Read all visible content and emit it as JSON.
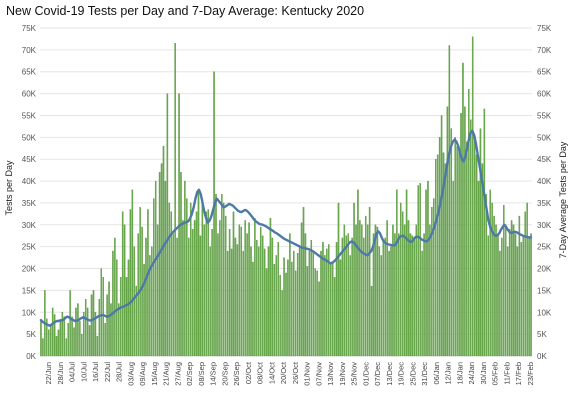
{
  "chart_data": {
    "type": "bar",
    "title": "New Covid-19 Tests per Day and 7-Day Average:  Kentucky 2020",
    "ylabel": "Tests per Day",
    "y2label": "7-Day Average Tests per Day",
    "ylim": [
      0,
      75000
    ],
    "y_ticks": [
      "0K",
      "5K",
      "10K",
      "15K",
      "20K",
      "25K",
      "30K",
      "35K",
      "40K",
      "45K",
      "50K",
      "55K",
      "60K",
      "65K",
      "70K",
      "75K"
    ],
    "x_tick_labels": [
      "22/Jun",
      "28/Jun",
      "04/Jul",
      "10/Jul",
      "16/Jul",
      "22/Jul",
      "28/Jul",
      "03/Aug",
      "09/Aug",
      "15/Aug",
      "21/Aug",
      "27/Aug",
      "02/Sep",
      "08/Sep",
      "14/Sep",
      "20/Sep",
      "26/Sep",
      "02/Oct",
      "08/Oct",
      "14/Oct",
      "20/Oct",
      "26/Oct",
      "01/Nov",
      "07/Nov",
      "13/Nov",
      "19/Nov",
      "25/Nov",
      "01/Dec",
      "07/Dec",
      "13/Dec",
      "19/Dec",
      "25/Dec",
      "31/Dec",
      "06/Jan",
      "12/Jan",
      "18/Jan",
      "24/Jan",
      "30/Jan",
      "05/Feb",
      "11/Feb",
      "17/Feb",
      "23/Feb"
    ],
    "grid": true,
    "legend": "none",
    "colors": {
      "bars": "#6aaa4c",
      "bars_edge": "#4f8f38",
      "line": "#4e79a7",
      "grid": "#e6e6e6"
    },
    "series": [
      {
        "name": "Tests per Day",
        "values": [
          8000,
          4000,
          15000,
          8500,
          6000,
          7000,
          11000,
          9500,
          4500,
          6000,
          8000,
          10000,
          9000,
          4000,
          7500,
          15000,
          9000,
          6500,
          11000,
          12000,
          8000,
          5000,
          10000,
          13000,
          11000,
          7000,
          14000,
          15000,
          10000,
          4500,
          13000,
          20000,
          18000,
          7500,
          14000,
          17000,
          12000,
          24000,
          27000,
          22000,
          12000,
          18000,
          33000,
          30000,
          18000,
          22000,
          33500,
          38000,
          25000,
          16000,
          28000,
          34000,
          29500,
          21000,
          27000,
          33500,
          23000,
          25000,
          36000,
          40000,
          30000,
          42000,
          44000,
          48000,
          40000,
          60000,
          35000,
          33000,
          28000,
          71500,
          27000,
          60000,
          42000,
          31000,
          40000,
          36000,
          27000,
          35000,
          29000,
          31000,
          33000,
          38000,
          27500,
          36000,
          30000,
          33000,
          33500,
          25000,
          29000,
          65000,
          37000,
          28000,
          31000,
          37000,
          35000,
          32000,
          24000,
          29000,
          24500,
          33000,
          27000,
          25500,
          30000,
          29500,
          24000,
          31000,
          28000,
          30500,
          25000,
          21500,
          31500,
          26500,
          25000,
          29500,
          27500,
          24500,
          20000,
          25000,
          31500,
          27000,
          21000,
          23000,
          26000,
          18500,
          15000,
          22500,
          19000,
          22000,
          28000,
          21500,
          24000,
          19500,
          23500,
          25000,
          30500,
          34000,
          28000,
          20500,
          24000,
          26500,
          24000,
          20000,
          19500,
          17000,
          24000,
          26000,
          23000,
          24500,
          25500,
          21000,
          21500,
          18000,
          26000,
          35000,
          22000,
          27000,
          30000,
          27500,
          28000,
          23000,
          27000,
          35000,
          30000,
          38000,
          31000,
          30000,
          27000,
          32000,
          30000,
          34000,
          16000,
          28000,
          30000,
          29500,
          25000,
          23000,
          26000,
          27000,
          31000,
          24000,
          25000,
          30000,
          28000,
          38000,
          28000,
          35000,
          33000,
          30000,
          38000,
          31000,
          28000,
          27500,
          27000,
          30000,
          39000,
          39500,
          24000,
          28000,
          38000,
          40000,
          30000,
          34000,
          36000,
          45000,
          46000,
          50000,
          55000,
          46500,
          44000,
          57000,
          71000,
          52000,
          40000,
          50000,
          48000,
          47500,
          55500,
          67000,
          57000,
          49000,
          61000,
          54000,
          73000,
          50000,
          46000,
          40000,
          52000,
          44000,
          56500,
          37000,
          27500,
          38000,
          35000,
          32000,
          30000,
          28000,
          24000,
          27000,
          34500,
          30000,
          25000,
          29000,
          31000,
          30000,
          28000,
          25000,
          32000,
          26000,
          27500,
          33000,
          35000,
          27000,
          28000
        ]
      },
      {
        "name": "7-Day Average Tests per Day",
        "values": [
          8200,
          7800,
          7500,
          7300,
          7100,
          6900,
          7200,
          7500,
          7800,
          8000,
          8000,
          8200,
          8100,
          8400,
          8800,
          9000,
          8800,
          8400,
          8300,
          8000,
          8100,
          8200,
          8500,
          8700,
          8900,
          8600,
          8400,
          8200,
          8100,
          8300,
          8500,
          8700,
          9000,
          9200,
          9300,
          9400,
          9200,
          9000,
          9100,
          9300,
          9600,
          9900,
          10300,
          10600,
          10800,
          11100,
          11200,
          11400,
          11600,
          11800,
          12100,
          12500,
          13000,
          13500,
          14000,
          14500,
          15100,
          15800,
          16500,
          17500,
          18500,
          19500,
          20300,
          21000,
          21700,
          22300,
          23000,
          23700,
          24400,
          25100,
          25800,
          26400,
          27100,
          27700,
          28200,
          28600,
          29000,
          29400,
          29800,
          30100,
          30300,
          30500,
          30600,
          30800,
          31500,
          32500,
          34000,
          36000,
          37500,
          38000,
          37000,
          35000,
          33000,
          31500,
          30500,
          31000,
          32000,
          33500,
          35000,
          36000,
          35500,
          35000,
          34500,
          34000,
          34200,
          34500,
          34800,
          34600,
          34400,
          34000,
          33600,
          33200,
          33000,
          32900,
          33200,
          33400,
          33200,
          32800,
          32300,
          31800,
          31200,
          30800,
          30500,
          30200,
          30100,
          30000,
          29800,
          29600,
          29300,
          29000,
          28800,
          28500,
          28200,
          28000,
          27700,
          27400,
          27100,
          26800,
          26600,
          26400,
          26200,
          26000,
          25800,
          25600,
          25400,
          25200,
          25000,
          24800,
          24700,
          24600,
          24500,
          24400,
          24200,
          24000,
          23700,
          23400,
          23100,
          22800,
          22500,
          22200,
          22000,
          21800,
          21500,
          21200,
          21300,
          21600,
          22000,
          22500,
          23000,
          23500,
          24000,
          24500,
          25000,
          25500,
          26000,
          26200,
          26000,
          25500,
          25000,
          24500,
          24000,
          23700,
          23400,
          23200,
          23000,
          23500,
          24000,
          25000,
          26500,
          28000,
          28500,
          28000,
          27000,
          26200,
          25800,
          25600,
          25500,
          25400,
          25300,
          25300,
          25600,
          26400,
          27200,
          27400,
          27500,
          27200,
          26800,
          26400,
          26100,
          26200,
          26800,
          27200,
          27300,
          27100,
          26800,
          26500,
          26300,
          26200,
          26400,
          27000,
          27800,
          28800,
          30000,
          31500,
          33000,
          35000,
          37000,
          39500,
          42000,
          44500,
          46500,
          48000,
          49000,
          49500,
          49000,
          48000,
          46500,
          45000,
          44500,
          45500,
          47500,
          49500,
          51000,
          51500,
          50500,
          48500,
          46000,
          43500,
          41000,
          38500,
          36000,
          33500,
          31000,
          29500,
          28500,
          27800,
          27500,
          27600,
          28000,
          28800,
          29500,
          30000,
          29500,
          28800,
          28300,
          28100,
          28300,
          28400,
          28300,
          28000,
          27800,
          27600,
          27400,
          27300,
          27200,
          27100,
          27100
        ]
      }
    ]
  }
}
